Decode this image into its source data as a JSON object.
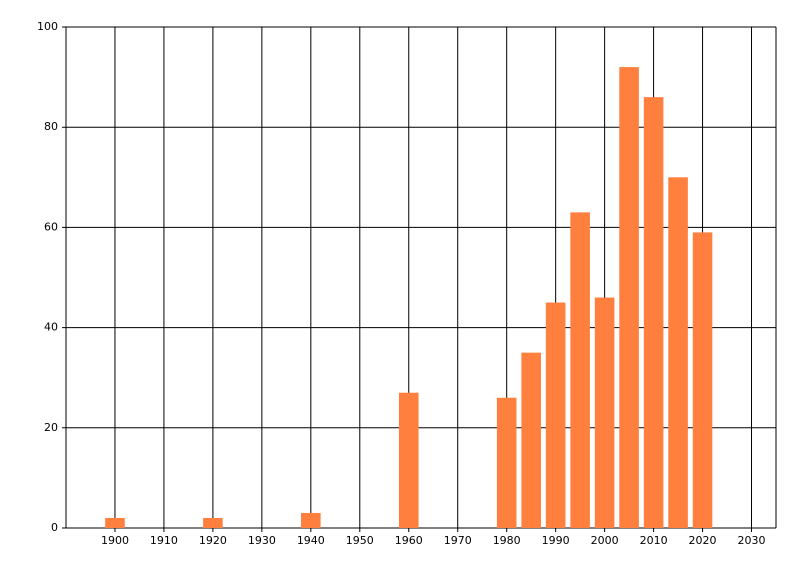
{
  "chart_data": {
    "type": "bar",
    "x": [
      1900,
      1920,
      1940,
      1960,
      1980,
      1985,
      1990,
      1995,
      2000,
      2005,
      2010,
      2015,
      2020
    ],
    "values": [
      2,
      2,
      3,
      27,
      26,
      35,
      45,
      63,
      46,
      92,
      86,
      70,
      59
    ],
    "color": "#ff7f3f",
    "xlim": [
      1890,
      2035
    ],
    "xticks": [
      1900,
      1910,
      1920,
      1930,
      1940,
      1950,
      1960,
      1970,
      1980,
      1990,
      2000,
      2010,
      2020,
      2030
    ],
    "ylim": [
      0,
      100
    ],
    "yticks": [
      0,
      20,
      40,
      60,
      80,
      100
    ],
    "grid": true
  }
}
